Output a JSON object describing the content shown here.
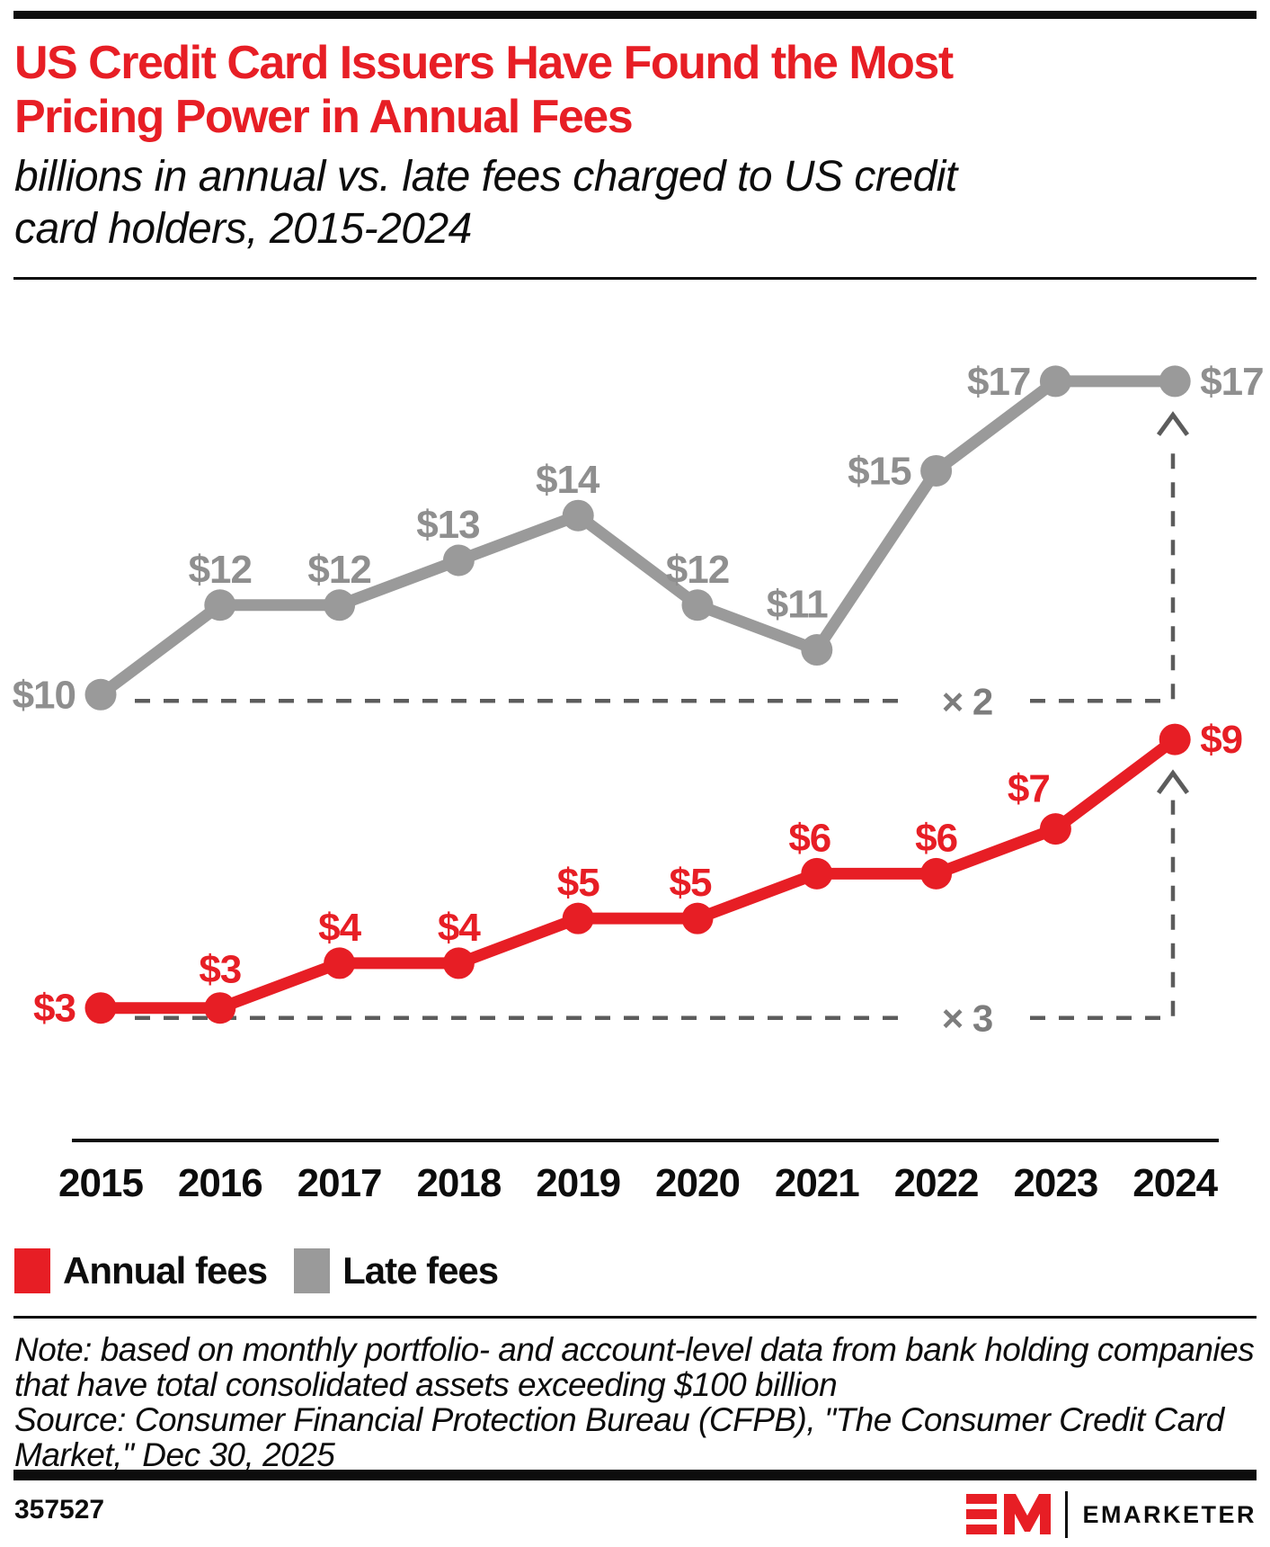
{
  "header": {
    "title_lines": [
      "US Credit Card Issuers Have Found the Most",
      "Pricing Power in Annual Fees"
    ],
    "subtitle_lines": [
      "billions in annual vs. late fees charged to US credit",
      "card holders, 2015-2024"
    ]
  },
  "theme": {
    "accent_red": "#e71e25",
    "line_gray": "#9a9a9a",
    "dash_gray": "#5c5c5c",
    "multiplier_label_gray": "#7d7d7d",
    "text_black": "#0d0d0d"
  },
  "chart_data": {
    "type": "line",
    "title": "US Credit Card Issuers Have Found the Most Pricing Power in Annual Fees",
    "subtitle": "billions in annual vs. late fees charged to US credit card holders, 2015-2024",
    "categories": [
      "2015",
      "2016",
      "2017",
      "2018",
      "2019",
      "2020",
      "2021",
      "2022",
      "2023",
      "2024"
    ],
    "series": [
      {
        "name": "Annual fees",
        "color": "#e71e25",
        "label_color": "#e71e25",
        "values": [
          3,
          3,
          4,
          4,
          5,
          5,
          6,
          6,
          7,
          9
        ],
        "labels": [
          "$3",
          "$3",
          "$4",
          "$4",
          "$5",
          "$5",
          "$6",
          "$6",
          "$7",
          "$9"
        ]
      },
      {
        "name": "Late fees",
        "color": "#9a9a9a",
        "label_color": "#8f8f8f",
        "values": [
          10,
          12,
          12,
          13,
          14,
          12,
          11,
          15,
          17,
          17
        ],
        "labels": [
          "$10",
          "$12",
          "$12",
          "$13",
          "$14",
          "$12",
          "$11",
          "$15",
          "$17",
          "$17"
        ]
      }
    ],
    "annotations": [
      {
        "label": "× 2",
        "series": "Late fees",
        "meaning": "late fees doubled from $10 in 2015 to $17 in 2024"
      },
      {
        "label": "× 3",
        "series": "Annual fees",
        "meaning": "annual fees tripled from $3 in 2015 to $9 in 2024"
      }
    ],
    "unit_prefix": "$",
    "xlabel": "",
    "ylabel": "",
    "ylim": [
      0,
      19
    ],
    "grid": false,
    "legend_position": "bottom-left"
  },
  "legend": {
    "items": [
      {
        "label": "Annual fees",
        "color": "#e71e25"
      },
      {
        "label": "Late fees",
        "color": "#9a9a9a"
      }
    ]
  },
  "footer": {
    "note_lines": [
      "Note: based on monthly portfolio- and account-level data from bank holding companies",
      "that have total consolidated assets exceeding $100 billion"
    ],
    "source_lines": [
      "Source: Consumer Financial Protection Bureau (CFPB), \"The Consumer Credit Card",
      "Market,\" Dec 30, 2025"
    ],
    "chart_id": "357527",
    "brand": {
      "logo_text": "EM",
      "name": "EMARKETER"
    }
  }
}
